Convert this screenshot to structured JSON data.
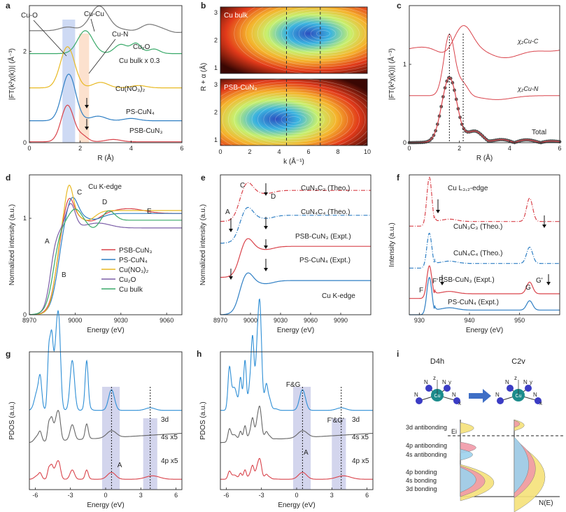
{
  "panels": [
    {
      "id": "a",
      "type": "line",
      "ylabel": "|FT(k²χ(k))| (Å⁻³)",
      "xlabel": "R (Å)",
      "xlim": [
        0,
        6
      ],
      "xticks": [
        0,
        2,
        4,
        6
      ],
      "yticks": [
        0,
        2
      ],
      "highlights": [
        {
          "label": "Cu-O",
          "x": 1.55,
          "color": "#8fb0e6"
        },
        {
          "label": "Cu-Cu",
          "x": 2.22,
          "color": "#f4c7a5"
        },
        {
          "label": "Cu-N",
          "x": 2.05,
          "color": "none"
        }
      ],
      "series": [
        {
          "name": "Cu₂O",
          "color": "#777777",
          "baseline": 2.5
        },
        {
          "name": "Cu bulk x 0.3",
          "color": "#3aaa6a",
          "baseline": 1.95
        },
        {
          "name": "Cu(NO₃)₂",
          "color": "#e8b923",
          "baseline": 1.2
        },
        {
          "name": "PS-CuN₄",
          "color": "#2f7fc4",
          "baseline": 0.5
        },
        {
          "name": "PSB-CuN₃",
          "color": "#d9434b",
          "baseline": 0
        }
      ]
    },
    {
      "id": "b",
      "type": "heatmap",
      "ylabel": "R + α (Å)",
      "xlabel": "k (Å⁻¹)",
      "xticks": [
        0,
        2,
        4,
        6,
        8,
        10
      ],
      "subplots": [
        {
          "label": "Cu bulk",
          "yticks": [
            1,
            2,
            3
          ]
        },
        {
          "label": "PSB-CuN₃",
          "yticks": [
            1,
            2,
            3
          ]
        }
      ],
      "dashed_k": [
        4.5,
        6.8
      ]
    },
    {
      "id": "c",
      "type": "line",
      "ylabel": "|FT(k²χ(k))| (Å⁻³)",
      "xlabel": "R (Å)",
      "xticks": [
        0,
        2,
        4,
        6
      ],
      "yticks": [
        0,
        1
      ],
      "series": [
        {
          "name": "χ₂Cu-C",
          "color": "#d9434b"
        },
        {
          "name": "χ₂Cu-N",
          "color": "#d9434b"
        },
        {
          "name": "Total",
          "color": "#d9434b"
        }
      ],
      "markers_color": "#555555",
      "dashed_x": [
        1.6,
        2.15
      ]
    },
    {
      "id": "d",
      "type": "line",
      "title": "Cu K-edge",
      "ylabel": "Normalized intensity (a.u.)",
      "xlabel": "Energy (eV)",
      "xticks": [
        8970,
        9000,
        9030,
        9060
      ],
      "yticks": [
        0,
        1
      ],
      "annotations": [
        "A",
        "B",
        "C",
        "D",
        "E"
      ],
      "series": [
        {
          "name": "PSB-CuN₃",
          "color": "#d9434b"
        },
        {
          "name": "PS-CuN₄",
          "color": "#2f7fc4"
        },
        {
          "name": "Cu(NO₃)₂",
          "color": "#e8b923"
        },
        {
          "name": "Cu₂O",
          "color": "#7b5ea7"
        },
        {
          "name": "Cu bulk",
          "color": "#3aaa6a"
        }
      ]
    },
    {
      "id": "e",
      "type": "line",
      "ylabel": "Normalized intensity (a.u.)",
      "xlabel": "Energy (eV)",
      "xticks": [
        8970,
        9000,
        9030,
        9060,
        9090
      ],
      "annotations": [
        "A",
        "C",
        "D"
      ],
      "bottom_label": "Cu K-edge",
      "series": [
        {
          "name": "CuN₃C₃ (Theo.)",
          "color": "#d9434b",
          "dash": "dashdot"
        },
        {
          "name": "CuN₄C₄ (Theo.)",
          "color": "#2f7fc4",
          "dash": "dashdot"
        },
        {
          "name": "PSB-CuN₃ (Expt.)",
          "color": "#d9434b",
          "dash": "solid"
        },
        {
          "name": "PS-CuN₄ (Expt.)",
          "color": "#2f7fc4",
          "dash": "solid"
        }
      ]
    },
    {
      "id": "f",
      "type": "line",
      "title": "Cu L₃,₂-edge",
      "ylabel": "Intensity (a.u.)",
      "xlabel": "Energy (eV)",
      "xticks": [
        930,
        940,
        950
      ],
      "annotations": [
        "F",
        "F'",
        "G",
        "G'"
      ],
      "series": [
        {
          "name": "CuN₃C₃ (Theo.)",
          "color": "#d9434b",
          "dash": "dashdot"
        },
        {
          "name": "CuN₄C₄ (Theo.)",
          "color": "#2f7fc4",
          "dash": "dashdot"
        },
        {
          "name": "PSB-CuN₃ (Expt.)",
          "color": "#d9434b",
          "dash": "solid"
        },
        {
          "name": "PS-CuN₄ (Expt.)",
          "color": "#2f7fc4",
          "dash": "solid"
        }
      ]
    },
    {
      "id": "g",
      "type": "line",
      "ylabel": "PDOS (a.u.)",
      "xlabel": "Energy (eV)",
      "xticks": [
        -6,
        -3,
        0,
        3,
        6
      ],
      "series": [
        {
          "name": "3d",
          "color": "#2f8fd6"
        },
        {
          "name": "4s x5",
          "color": "#666666"
        },
        {
          "name": "4p x5",
          "color": "#d9434b"
        }
      ],
      "annotations": [
        "A"
      ]
    },
    {
      "id": "h",
      "type": "line",
      "ylabel": "PDOS (a.u.)",
      "xlabel": "Energy (eV)",
      "xticks": [
        -6,
        -3,
        0,
        3,
        6
      ],
      "series": [
        {
          "name": "3d",
          "color": "#2f8fd6"
        },
        {
          "name": "4s x5",
          "color": "#666666"
        },
        {
          "name": "4p x5",
          "color": "#d9434b"
        }
      ],
      "annotations": [
        "F&G",
        "F'&G'",
        "A"
      ]
    },
    {
      "id": "i",
      "type": "diagram",
      "left_symmetry": "D4h",
      "right_symmetry": "C2v",
      "atom_labels": [
        "N",
        "Cu",
        "x",
        "y",
        "z"
      ],
      "levels": [
        "3d antibonding",
        "Ei",
        "4p antibonding",
        "4s antibonding",
        "4p bonding",
        "4s bonding",
        "3d bonding"
      ],
      "xaxis_label": "N(E)"
    }
  ],
  "chart_data": [
    {
      "type": "line",
      "title": "",
      "xlabel": "R (Å)",
      "ylabel": "|FT(k²χ(k))| (Å⁻³)",
      "xlim": [
        0,
        6
      ],
      "series": [
        {
          "name": "Cu₂O"
        },
        {
          "name": "Cu bulk x 0.3"
        },
        {
          "name": "Cu(NO₃)₂"
        },
        {
          "name": "PS-CuN₄"
        },
        {
          "name": "PSB-CuN₃"
        }
      ]
    },
    {
      "type": "heatmap",
      "xlabel": "k (Å⁻¹)",
      "ylabel": "R + α (Å)",
      "xlim": [
        0,
        10
      ],
      "ylim": [
        0.8,
        3.2
      ]
    },
    {
      "type": "line",
      "xlabel": "R (Å)",
      "ylabel": "|FT(k²χ(k))| (Å⁻³)",
      "xlim": [
        0,
        6
      ],
      "series": [
        {
          "name": "χ₂Cu-C"
        },
        {
          "name": "χ₂Cu-N"
        },
        {
          "name": "Total"
        }
      ]
    },
    {
      "type": "line",
      "title": "Cu K-edge",
      "xlabel": "Energy (eV)",
      "ylabel": "Normalized intensity (a.u.)",
      "xlim": [
        8970,
        9070
      ],
      "ylim": [
        0,
        1.45
      ]
    },
    {
      "type": "line",
      "xlabel": "Energy (eV)",
      "ylabel": "Normalized intensity (a.u.)",
      "xlim": [
        8970,
        9110
      ]
    },
    {
      "type": "line",
      "title": "Cu L₃,₂-edge",
      "xlabel": "Energy (eV)",
      "ylabel": "Intensity (a.u.)",
      "xlim": [
        928,
        958
      ]
    },
    {
      "type": "line",
      "xlabel": "Energy (eV)",
      "ylabel": "PDOS (a.u.)",
      "xlim": [
        -6.5,
        6.5
      ]
    },
    {
      "type": "line",
      "xlabel": "Energy (eV)",
      "ylabel": "PDOS (a.u.)",
      "xlim": [
        -6.5,
        6.5
      ]
    }
  ]
}
